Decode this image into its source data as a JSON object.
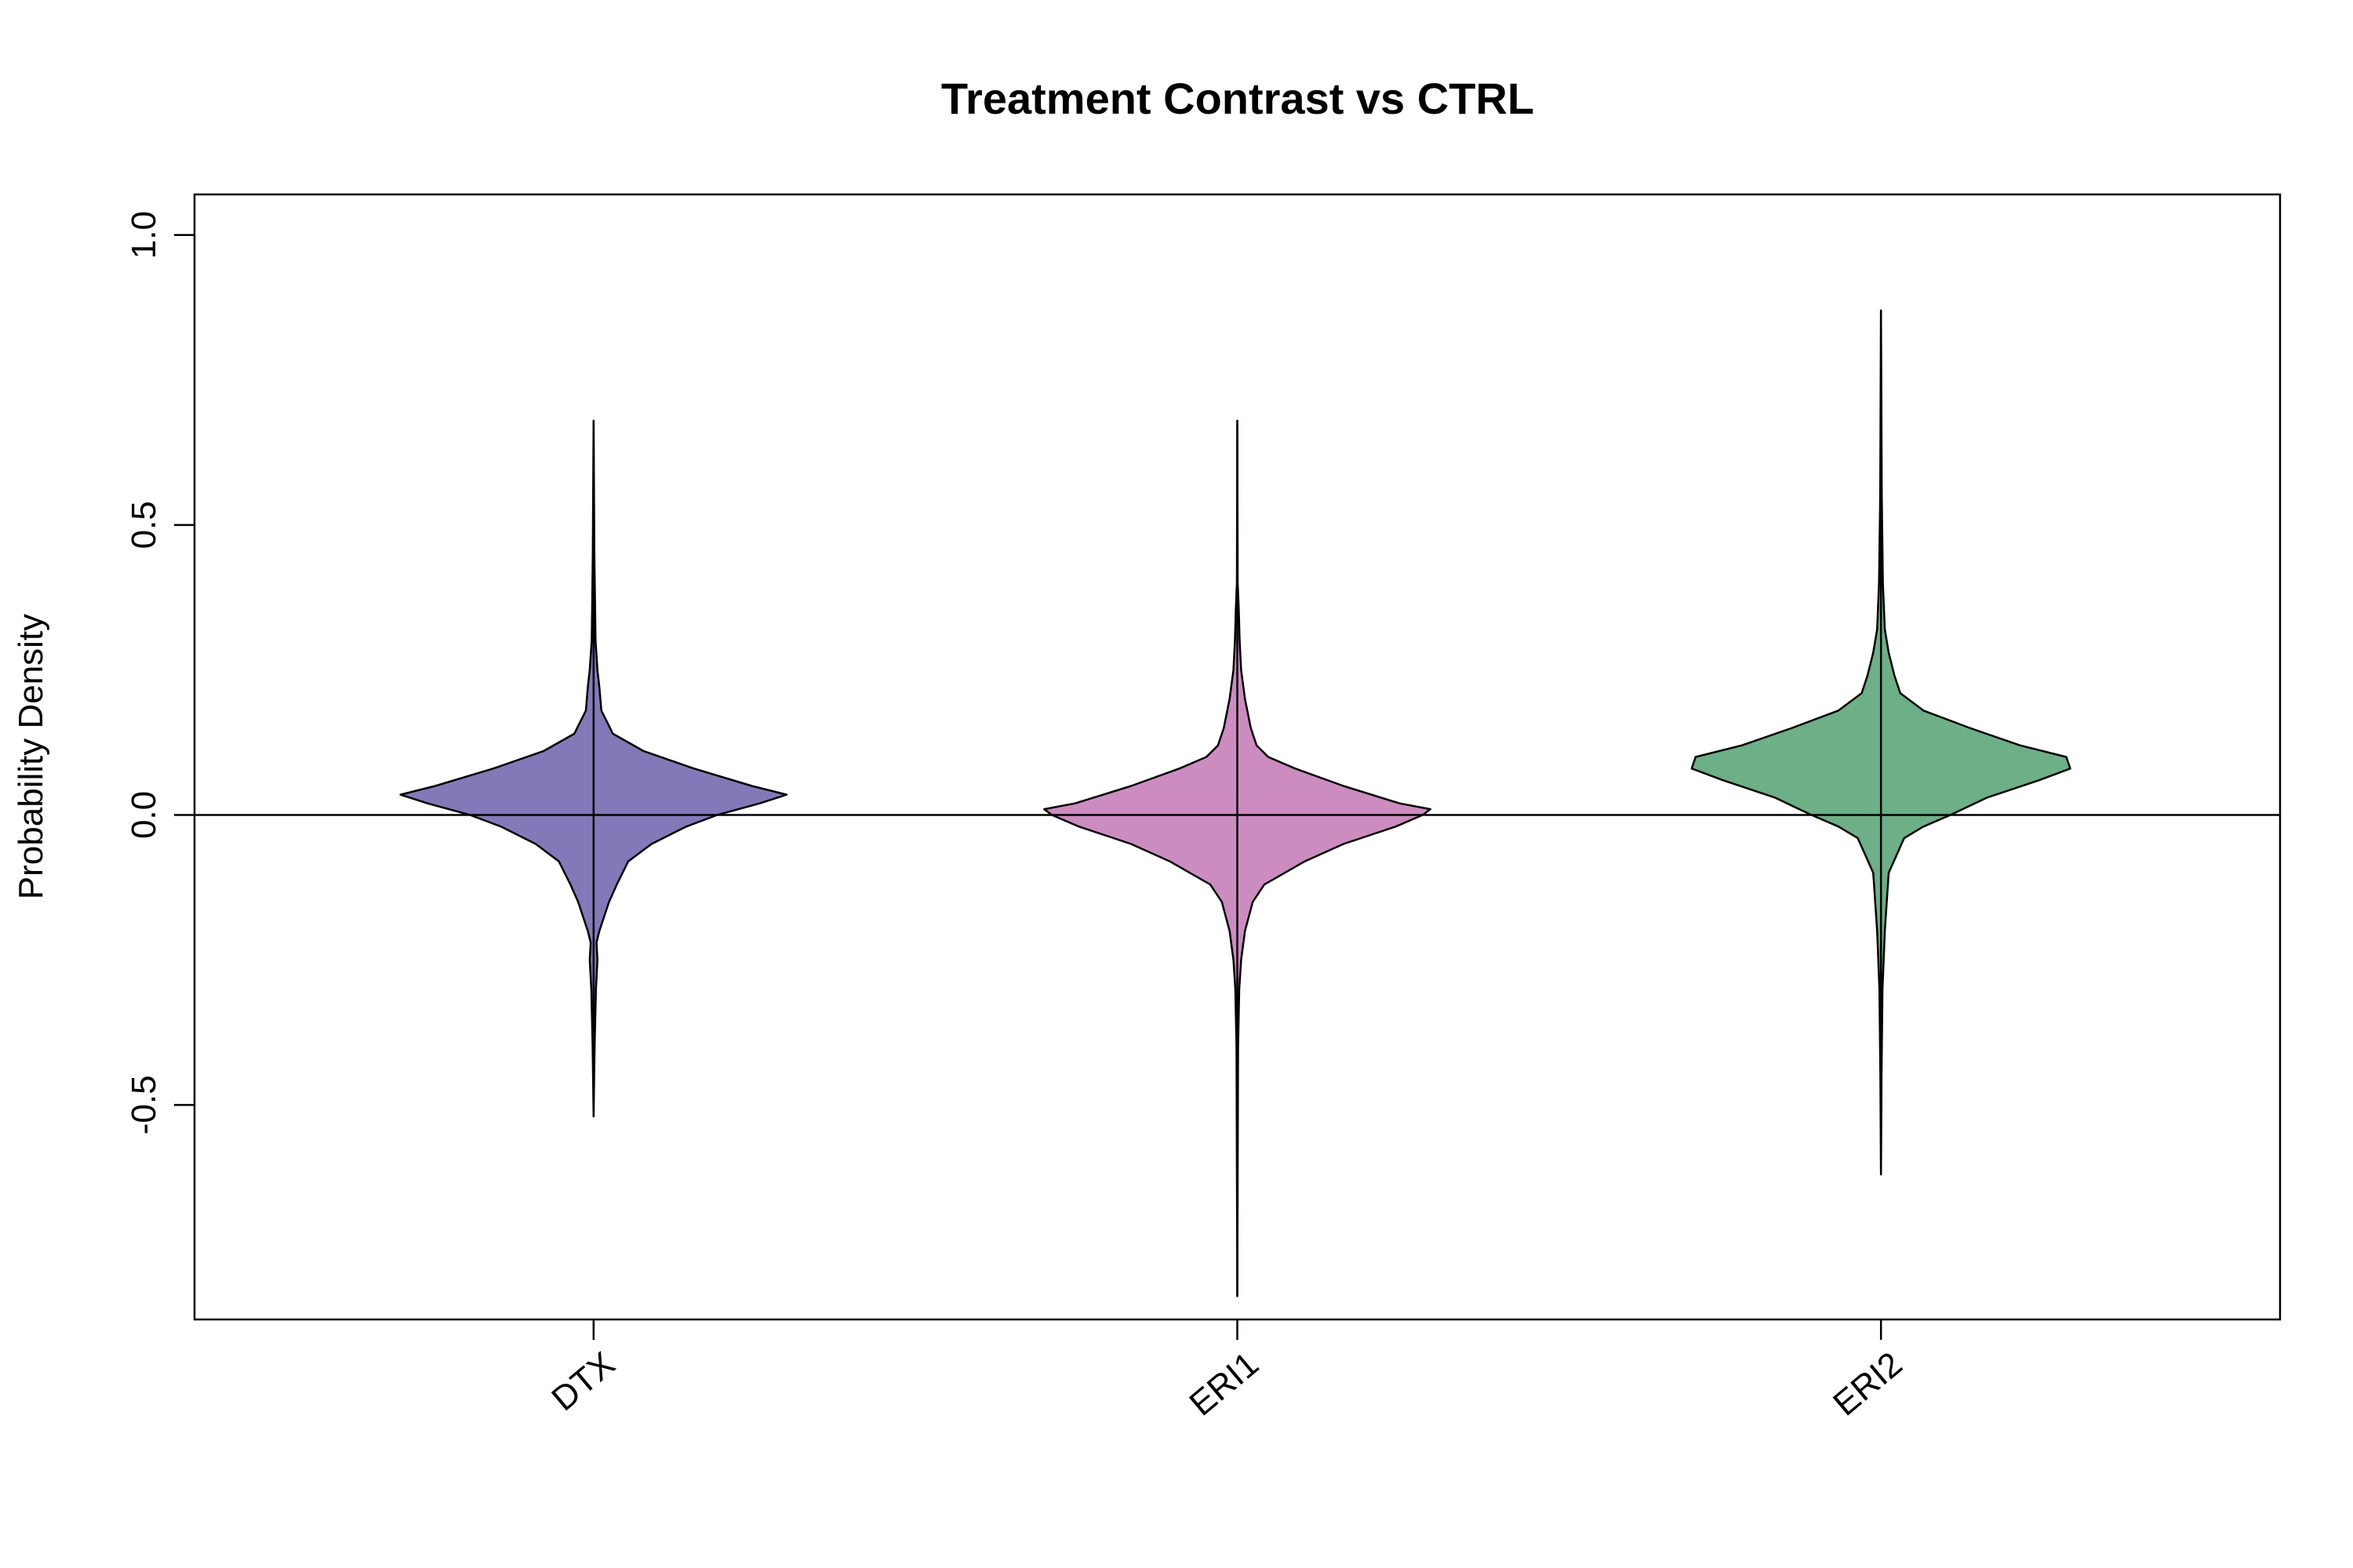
{
  "chart_data": {
    "type": "violin",
    "title": "Treatment Contrast vs CTRL",
    "xlabel": "",
    "ylabel": "Probability Density",
    "ylim": [
      -0.87,
      1.07
    ],
    "xlim": [
      0.38,
      3.62
    ],
    "yticks": [
      -0.5,
      0.0,
      0.5,
      1.0
    ],
    "ytick_labels": [
      "-0.5",
      "0.0",
      "0.5",
      "1.0"
    ],
    "reference_line_y": 0.0,
    "grid": false,
    "legend": "none",
    "categories": [
      "DTX",
      "ERI1",
      "ERI2"
    ],
    "series": [
      {
        "category": "DTX",
        "color": "#8479b8",
        "min": -0.52,
        "max": 0.68,
        "density_profile": [
          [
            -0.52,
            0.0
          ],
          [
            -0.4,
            0.005
          ],
          [
            -0.3,
            0.012
          ],
          [
            -0.25,
            0.02
          ],
          [
            -0.22,
            0.015
          ],
          [
            -0.2,
            0.03
          ],
          [
            -0.18,
            0.05
          ],
          [
            -0.15,
            0.08
          ],
          [
            -0.12,
            0.12
          ],
          [
            -0.08,
            0.18
          ],
          [
            -0.05,
            0.3
          ],
          [
            -0.02,
            0.48
          ],
          [
            0.0,
            0.64
          ],
          [
            0.02,
            0.86
          ],
          [
            0.035,
            1.0
          ],
          [
            0.05,
            0.82
          ],
          [
            0.08,
            0.52
          ],
          [
            0.11,
            0.26
          ],
          [
            0.14,
            0.1
          ],
          [
            0.16,
            0.07
          ],
          [
            0.18,
            0.04
          ],
          [
            0.22,
            0.03
          ],
          [
            0.25,
            0.02
          ],
          [
            0.3,
            0.01
          ],
          [
            0.35,
            0.008
          ],
          [
            0.45,
            0.004
          ],
          [
            0.68,
            0.0
          ]
        ]
      },
      {
        "category": "ERI1",
        "color": "#cc8cc0",
        "min": -0.83,
        "max": 0.68,
        "density_profile": [
          [
            -0.83,
            0.0
          ],
          [
            -0.4,
            0.004
          ],
          [
            -0.3,
            0.01
          ],
          [
            -0.25,
            0.02
          ],
          [
            -0.2,
            0.04
          ],
          [
            -0.15,
            0.08
          ],
          [
            -0.12,
            0.14
          ],
          [
            -0.08,
            0.35
          ],
          [
            -0.05,
            0.55
          ],
          [
            -0.02,
            0.82
          ],
          [
            0.0,
            0.96
          ],
          [
            0.01,
            1.0
          ],
          [
            0.02,
            0.84
          ],
          [
            0.05,
            0.55
          ],
          [
            0.08,
            0.3
          ],
          [
            0.1,
            0.16
          ],
          [
            0.12,
            0.1
          ],
          [
            0.15,
            0.07
          ],
          [
            0.2,
            0.04
          ],
          [
            0.25,
            0.02
          ],
          [
            0.3,
            0.012
          ],
          [
            0.35,
            0.008
          ],
          [
            0.4,
            0.002
          ],
          [
            0.68,
            0.0
          ]
        ]
      },
      {
        "category": "ERI2",
        "color": "#6daf86",
        "min": -0.62,
        "max": 0.87,
        "density_profile": [
          [
            -0.62,
            0.0
          ],
          [
            -0.45,
            0.003
          ],
          [
            -0.3,
            0.008
          ],
          [
            -0.2,
            0.02
          ],
          [
            -0.1,
            0.04
          ],
          [
            -0.07,
            0.08
          ],
          [
            -0.04,
            0.12
          ],
          [
            -0.02,
            0.22
          ],
          [
            0.0,
            0.36
          ],
          [
            0.03,
            0.55
          ],
          [
            0.06,
            0.82
          ],
          [
            0.08,
            0.98
          ],
          [
            0.1,
            0.96
          ],
          [
            0.12,
            0.72
          ],
          [
            0.15,
            0.46
          ],
          [
            0.18,
            0.22
          ],
          [
            0.21,
            0.1
          ],
          [
            0.24,
            0.07
          ],
          [
            0.28,
            0.04
          ],
          [
            0.32,
            0.02
          ],
          [
            0.4,
            0.01
          ],
          [
            0.55,
            0.004
          ],
          [
            0.87,
            0.0
          ]
        ]
      }
    ]
  }
}
